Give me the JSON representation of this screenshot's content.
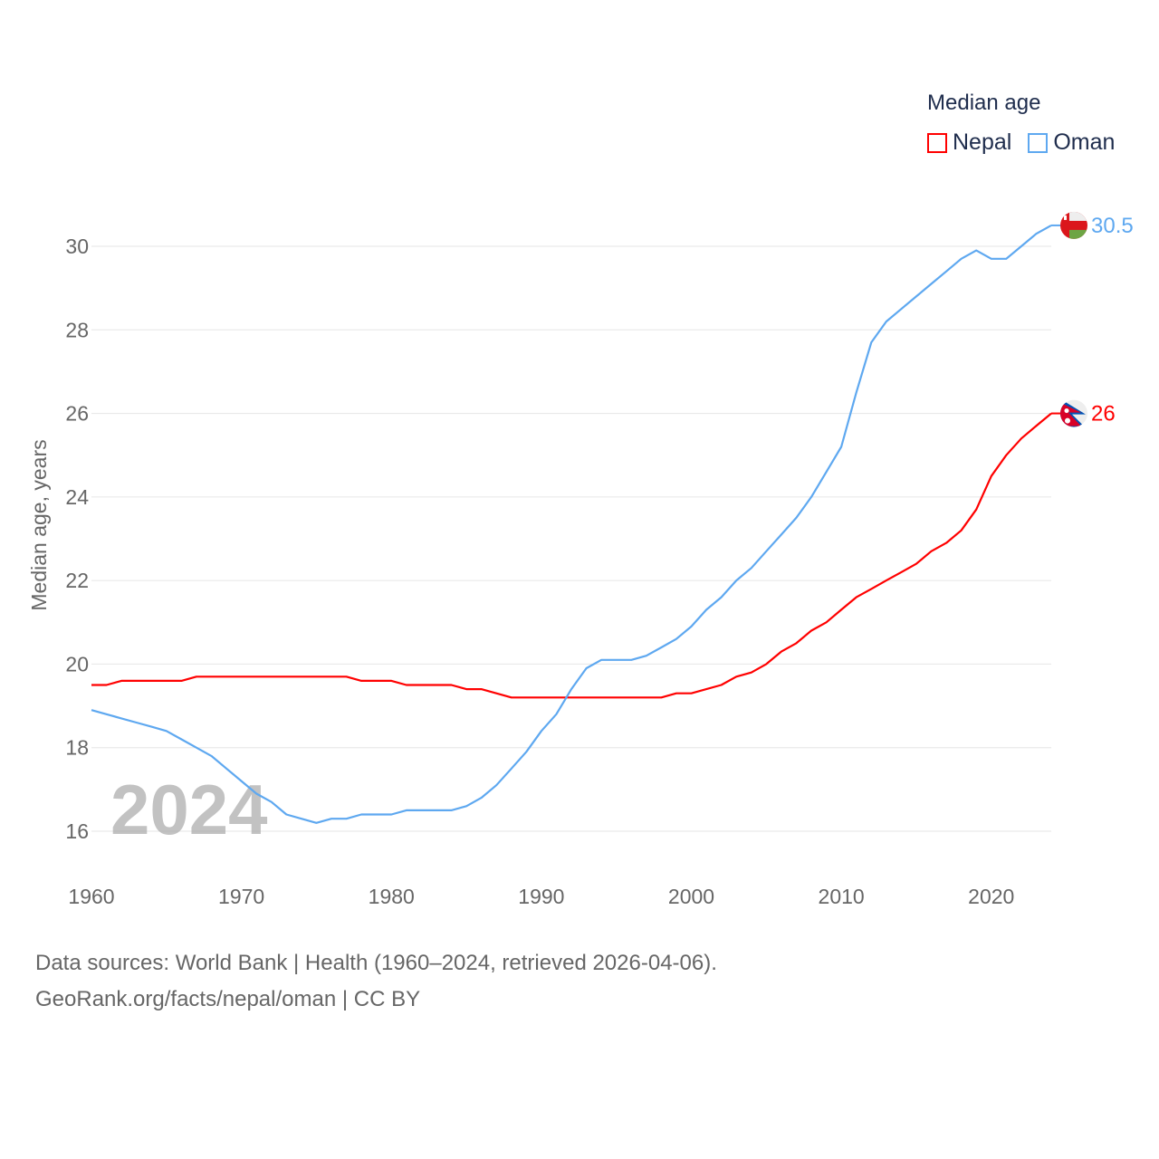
{
  "chart_data": {
    "type": "line",
    "title": "",
    "xlabel": "",
    "ylabel": "Median age, years",
    "xlim": [
      1960,
      2024
    ],
    "ylim": [
      15.2,
      31
    ],
    "x_ticks": [
      "1960",
      "1970",
      "1980",
      "1990",
      "2000",
      "2010",
      "2020"
    ],
    "y_ticks": [
      "16",
      "18",
      "20",
      "22",
      "24",
      "26",
      "28",
      "30"
    ],
    "grid": true,
    "legend_title": "Median age",
    "legend_position": "top-right",
    "year_watermark": "2024",
    "x": [
      1960,
      1961,
      1962,
      1963,
      1964,
      1965,
      1966,
      1967,
      1968,
      1969,
      1970,
      1971,
      1972,
      1973,
      1974,
      1975,
      1976,
      1977,
      1978,
      1979,
      1980,
      1981,
      1982,
      1983,
      1984,
      1985,
      1986,
      1987,
      1988,
      1989,
      1990,
      1991,
      1992,
      1993,
      1994,
      1995,
      1996,
      1997,
      1998,
      1999,
      2000,
      2001,
      2002,
      2003,
      2004,
      2005,
      2006,
      2007,
      2008,
      2009,
      2010,
      2011,
      2012,
      2013,
      2014,
      2015,
      2016,
      2017,
      2018,
      2019,
      2020,
      2021,
      2022,
      2023,
      2024
    ],
    "series": [
      {
        "name": "Nepal",
        "color": "#ff0000",
        "end_label": "26",
        "flag": "nepal-flag",
        "values": [
          19.5,
          19.5,
          19.6,
          19.6,
          19.6,
          19.6,
          19.6,
          19.7,
          19.7,
          19.7,
          19.7,
          19.7,
          19.7,
          19.7,
          19.7,
          19.7,
          19.7,
          19.7,
          19.6,
          19.6,
          19.6,
          19.5,
          19.5,
          19.5,
          19.5,
          19.4,
          19.4,
          19.3,
          19.2,
          19.2,
          19.2,
          19.2,
          19.2,
          19.2,
          19.2,
          19.2,
          19.2,
          19.2,
          19.2,
          19.3,
          19.3,
          19.4,
          19.5,
          19.7,
          19.8,
          20.0,
          20.3,
          20.5,
          20.8,
          21.0,
          21.3,
          21.6,
          21.8,
          22.0,
          22.2,
          22.4,
          22.7,
          22.9,
          23.2,
          23.7,
          24.5,
          25.0,
          25.4,
          25.7,
          26.0
        ]
      },
      {
        "name": "Oman",
        "color": "#5ea8f0",
        "end_label": "30.5",
        "flag": "oman-flag",
        "values": [
          18.9,
          18.8,
          18.7,
          18.6,
          18.5,
          18.4,
          18.2,
          18.0,
          17.8,
          17.5,
          17.2,
          16.9,
          16.7,
          16.4,
          16.3,
          16.2,
          16.3,
          16.3,
          16.4,
          16.4,
          16.4,
          16.5,
          16.5,
          16.5,
          16.5,
          16.6,
          16.8,
          17.1,
          17.5,
          17.9,
          18.4,
          18.8,
          19.4,
          19.9,
          20.1,
          20.1,
          20.1,
          20.2,
          20.4,
          20.6,
          20.9,
          21.3,
          21.6,
          22.0,
          22.3,
          22.7,
          23.1,
          23.5,
          24.0,
          24.6,
          25.2,
          26.5,
          27.7,
          28.2,
          28.5,
          28.8,
          29.1,
          29.4,
          29.7,
          29.9,
          29.7,
          29.7,
          30.0,
          30.3,
          30.5
        ]
      }
    ]
  },
  "footer": {
    "line1": "Data sources: World Bank | Health (1960–2024, retrieved 2026-04-06).",
    "line2": "GeoRank.org/facts/nepal/oman | CC BY"
  }
}
